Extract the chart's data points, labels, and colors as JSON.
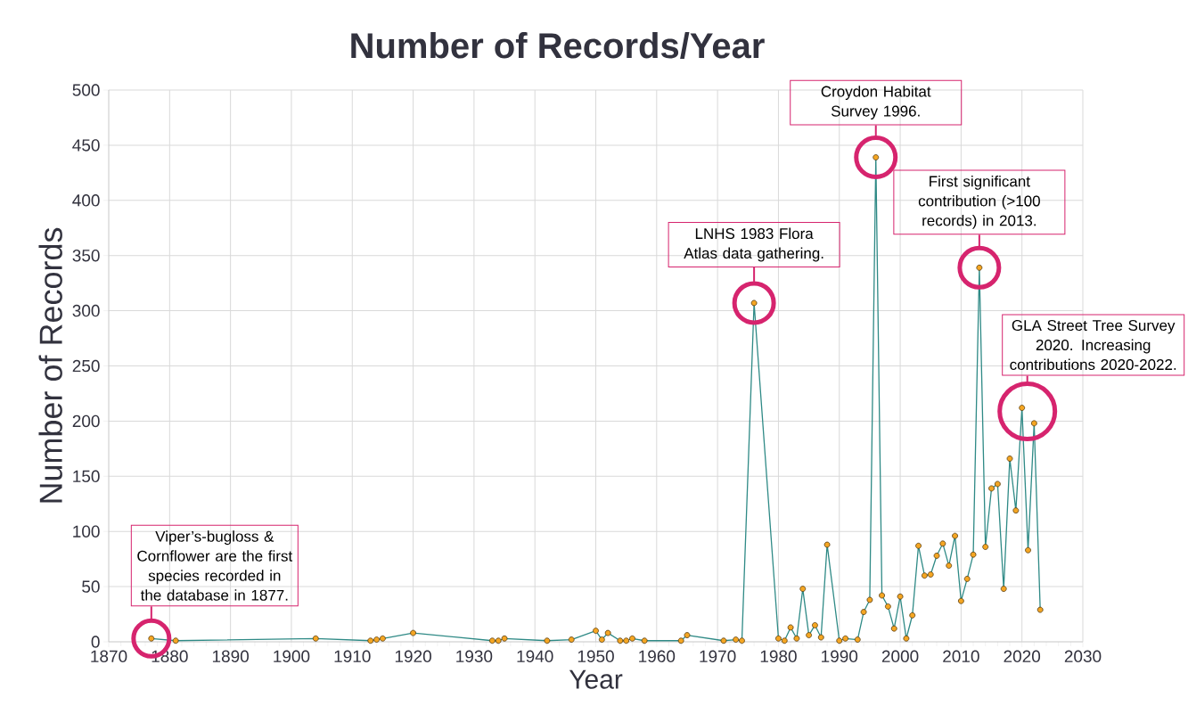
{
  "chart_data": {
    "type": "line",
    "title": "Number of Records/Year",
    "xlabel": "Year",
    "ylabel": "Number of Records",
    "x": [
      1877,
      1881,
      1904,
      1913,
      1914,
      1915,
      1920,
      1933,
      1934,
      1935,
      1942,
      1946,
      1950,
      1951,
      1952,
      1954,
      1955,
      1956,
      1958,
      1964,
      1965,
      1971,
      1973,
      1974,
      1976,
      1980,
      1981,
      1982,
      1983,
      1984,
      1985,
      1986,
      1987,
      1988,
      1990,
      1991,
      1993,
      1994,
      1995,
      1996,
      1997,
      1998,
      1999,
      2000,
      2001,
      2002,
      2003,
      2004,
      2005,
      2006,
      2007,
      2008,
      2009,
      2010,
      2011,
      2012,
      2013,
      2014,
      2015,
      2016,
      2017,
      2018,
      2019,
      2020,
      2021,
      2022,
      2023
    ],
    "values": [
      3,
      1,
      3,
      1,
      2,
      3,
      8,
      1,
      1,
      3,
      1,
      2,
      10,
      2,
      8,
      1,
      1,
      3,
      1,
      1,
      6,
      1,
      2,
      1,
      307,
      3,
      1,
      13,
      3,
      48,
      6,
      15,
      4,
      88,
      1,
      3,
      2,
      27,
      38,
      439,
      42,
      32,
      12,
      41,
      3,
      24,
      87,
      60,
      61,
      78,
      89,
      69,
      96,
      37,
      57,
      79,
      339,
      86,
      139,
      143,
      48,
      166,
      119,
      212,
      83,
      198,
      29
    ],
    "color": "#f5a623",
    "marker": "circle",
    "grid": true,
    "xlim": [
      1870,
      2030
    ],
    "xticks": [
      1870,
      1880,
      1890,
      1900,
      1910,
      1920,
      1930,
      1940,
      1950,
      1960,
      1970,
      1980,
      1990,
      2000,
      2010,
      2020,
      2030
    ],
    "ylim": [
      0,
      500
    ],
    "yticks": [
      0,
      50,
      100,
      150,
      200,
      250,
      300,
      350,
      400,
      450,
      500
    ],
    "annotations": [
      {
        "text": "Viper’s-bugloss & Cornflower are the first species recorded in the database in 1877.",
        "x": 1877,
        "y": 3
      },
      {
        "text": "LNHS 1983 Flora Atlas data gathering.",
        "x": 1976,
        "y": 307
      },
      {
        "text": "Croydon Habitat Survey 1996.",
        "x": 1996,
        "y": 439
      },
      {
        "text": "First significant contribution (>100 records) in 2013.",
        "x": 2013,
        "y": 339
      },
      {
        "text": "GLA Street Tree Survey 2020. Increasing contributions 2020-2022.",
        "x": 2020,
        "y": 212
      }
    ]
  }
}
